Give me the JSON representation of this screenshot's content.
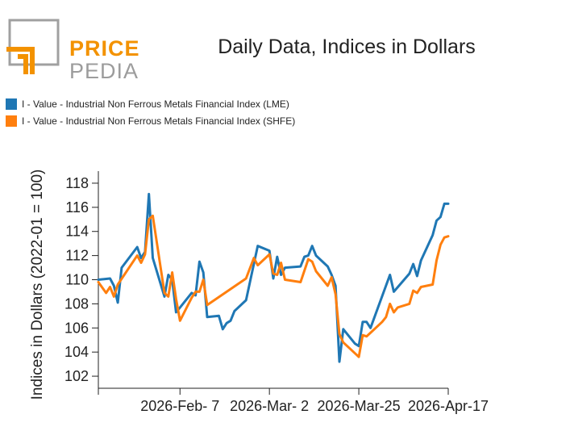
{
  "logo": {
    "line1": "PRICE",
    "line2": "PEDIA",
    "colors": {
      "orange": "#f39200",
      "grey": "#a0a0a0"
    }
  },
  "chart_data": {
    "type": "line",
    "title": "Daily Data, Indices in Dollars",
    "xlabel": "",
    "ylabel": "Indices in Dollars (2022-01 = 100)",
    "x_tick_labels": [
      "2026-Feb- 7",
      "2026-Mar- 2",
      "2026-Mar-25",
      "2026-Apr-17"
    ],
    "xlim": [
      "2026-Jan-17",
      "2026-Apr-17"
    ],
    "ylim": [
      101,
      119
    ],
    "yticks": [
      102,
      104,
      106,
      108,
      110,
      112,
      114,
      116,
      118
    ],
    "grid": false,
    "legend_position": "top-left",
    "series": [
      {
        "name": "I - Value - Industrial Non Ferrous Metals Financial Index (LME)",
        "color": "#1f77b4",
        "points": [
          [
            "2026-Jan-17",
            110.0
          ],
          [
            "2026-Jan-20",
            110.1
          ],
          [
            "2026-Jan-21",
            109.5
          ],
          [
            "2026-Jan-22",
            108.1
          ],
          [
            "2026-Jan-23",
            111.0
          ],
          [
            "2026-Jan-27",
            112.7
          ],
          [
            "2026-Jan-28",
            111.8
          ],
          [
            "2026-Jan-29",
            112.3
          ],
          [
            "2026-Jan-30",
            117.1
          ],
          [
            "2026-Jan-31",
            111.8
          ],
          [
            "2026-Feb-3",
            108.6
          ],
          [
            "2026-Feb-4",
            110.4
          ],
          [
            "2026-Feb-5",
            110.0
          ],
          [
            "2026-Feb-6",
            107.3
          ],
          [
            "2026-Feb-7",
            107.7
          ],
          [
            "2026-Feb-10",
            108.9
          ],
          [
            "2026-Feb-11",
            108.7
          ],
          [
            "2026-Feb-12",
            111.5
          ],
          [
            "2026-Feb-13",
            110.6
          ],
          [
            "2026-Feb-14",
            106.9
          ],
          [
            "2026-Feb-17",
            107.0
          ],
          [
            "2026-Feb-18",
            105.9
          ],
          [
            "2026-Feb-19",
            106.4
          ],
          [
            "2026-Feb-20",
            106.6
          ],
          [
            "2026-Feb-21",
            107.4
          ],
          [
            "2026-Feb-24",
            108.3
          ],
          [
            "2026-Feb-27",
            112.8
          ],
          [
            "2026-Mar-2",
            112.4
          ],
          [
            "2026-Mar-3",
            110.1
          ],
          [
            "2026-Mar-4",
            111.9
          ],
          [
            "2026-Mar-5",
            110.4
          ],
          [
            "2026-Mar-6",
            111.0
          ],
          [
            "2026-Mar-10",
            111.1
          ],
          [
            "2026-Mar-11",
            111.9
          ],
          [
            "2026-Mar-12",
            112.0
          ],
          [
            "2026-Mar-13",
            112.8
          ],
          [
            "2026-Mar-14",
            112.0
          ],
          [
            "2026-Mar-17",
            111.1
          ],
          [
            "2026-Mar-18",
            110.4
          ],
          [
            "2026-Mar-19",
            109.5
          ],
          [
            "2026-Mar-20",
            103.2
          ],
          [
            "2026-Mar-21",
            105.9
          ],
          [
            "2026-Mar-24",
            104.7
          ],
          [
            "2026-Mar-25",
            104.5
          ],
          [
            "2026-Mar-26",
            106.5
          ],
          [
            "2026-Mar-27",
            106.5
          ],
          [
            "2026-Mar-28",
            106.0
          ],
          [
            "2026-Apr-2",
            110.4
          ],
          [
            "2026-Apr-3",
            109.0
          ],
          [
            "2026-Apr-7",
            110.5
          ],
          [
            "2026-Apr-8",
            111.3
          ],
          [
            "2026-Apr-9",
            110.3
          ],
          [
            "2026-Apr-10",
            111.6
          ],
          [
            "2026-Apr-13",
            113.7
          ],
          [
            "2026-Apr-14",
            114.9
          ],
          [
            "2026-Apr-15",
            115.2
          ],
          [
            "2026-Apr-16",
            116.3
          ],
          [
            "2026-Apr-17",
            116.3
          ]
        ]
      },
      {
        "name": "I - Value - Industrial Non Ferrous Metals Financial Index (SHFE)",
        "color": "#ff7f0e",
        "points": [
          [
            "2026-Jan-17",
            109.8
          ],
          [
            "2026-Jan-19",
            108.9
          ],
          [
            "2026-Jan-20",
            109.4
          ],
          [
            "2026-Jan-21",
            108.6
          ],
          [
            "2026-Jan-22",
            109.6
          ],
          [
            "2026-Jan-27",
            112.0
          ],
          [
            "2026-Jan-28",
            111.4
          ],
          [
            "2026-Jan-29",
            112.1
          ],
          [
            "2026-Jan-30",
            115.0
          ],
          [
            "2026-Jan-31",
            115.3
          ],
          [
            "2026-Feb-3",
            108.9
          ],
          [
            "2026-Feb-4",
            108.6
          ],
          [
            "2026-Feb-5",
            110.6
          ],
          [
            "2026-Feb-6",
            108.4
          ],
          [
            "2026-Feb-7",
            106.6
          ],
          [
            "2026-Feb-10",
            108.5
          ],
          [
            "2026-Feb-11",
            109.0
          ],
          [
            "2026-Feb-12",
            109.0
          ],
          [
            "2026-Feb-13",
            110.0
          ],
          [
            "2026-Feb-14",
            107.9
          ],
          [
            "2026-Feb-24",
            110.1
          ],
          [
            "2026-Feb-26",
            111.8
          ],
          [
            "2026-Feb-27",
            111.2
          ],
          [
            "2026-Mar-2",
            112.1
          ],
          [
            "2026-Mar-3",
            110.5
          ],
          [
            "2026-Mar-4",
            110.4
          ],
          [
            "2026-Mar-5",
            111.4
          ],
          [
            "2026-Mar-6",
            110.0
          ],
          [
            "2026-Mar-10",
            109.8
          ],
          [
            "2026-Mar-12",
            111.7
          ],
          [
            "2026-Mar-13",
            111.5
          ],
          [
            "2026-Mar-14",
            110.7
          ],
          [
            "2026-Mar-17",
            109.5
          ],
          [
            "2026-Mar-18",
            110.2
          ],
          [
            "2026-Mar-19",
            108.8
          ],
          [
            "2026-Mar-20",
            105.5
          ],
          [
            "2026-Mar-21",
            104.8
          ],
          [
            "2026-Mar-24",
            103.9
          ],
          [
            "2026-Mar-25",
            103.6
          ],
          [
            "2026-Mar-26",
            105.4
          ],
          [
            "2026-Mar-27",
            105.3
          ],
          [
            "2026-Mar-28",
            105.6
          ],
          [
            "2026-Mar-31",
            106.5
          ],
          [
            "2026-Apr-1",
            106.9
          ],
          [
            "2026-Apr-2",
            108.0
          ],
          [
            "2026-Apr-3",
            107.3
          ],
          [
            "2026-Apr-4",
            107.7
          ],
          [
            "2026-Apr-7",
            108.0
          ],
          [
            "2026-Apr-8",
            109.1
          ],
          [
            "2026-Apr-9",
            108.9
          ],
          [
            "2026-Apr-10",
            109.4
          ],
          [
            "2026-Apr-13",
            109.6
          ],
          [
            "2026-Apr-14",
            111.6
          ],
          [
            "2026-Apr-15",
            112.9
          ],
          [
            "2026-Apr-16",
            113.5
          ],
          [
            "2026-Apr-17",
            113.6
          ]
        ]
      }
    ]
  }
}
